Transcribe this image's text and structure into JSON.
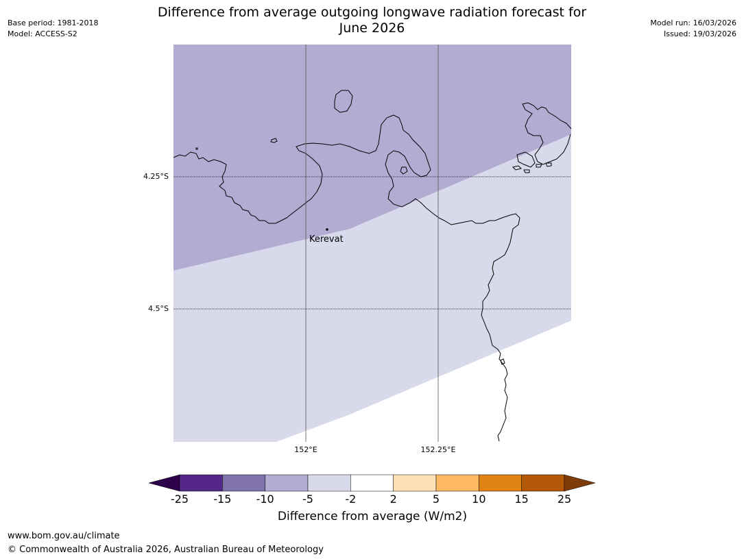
{
  "header": {
    "title_line1": "Difference from average outgoing longwave radiation forecast for",
    "title_line2": "June 2026",
    "base_period": "Base period: 1981-2018",
    "model": "Model: ACCESS-S2",
    "model_run": "Model run: 16/03/2026",
    "issued": "Issued: 19/03/2026"
  },
  "map": {
    "lat_labels": [
      "4.25°S",
      "4.5°S"
    ],
    "lon_labels": [
      "152°E",
      "152.25°E"
    ],
    "place": "Kerevat",
    "colors": {
      "anomaly_-10_-5": "#b2abd2",
      "anomaly_-5_-2": "#d8d9ea",
      "coastline": "#000000",
      "gridline": "#000000"
    }
  },
  "colorbar": {
    "ticks": [
      "-25",
      "-15",
      "-10",
      "-5",
      "-2",
      "2",
      "5",
      "10",
      "15",
      "25"
    ],
    "label": "Difference from average (W/m2)",
    "colors": [
      "#2d004b",
      "#542788",
      "#8073ac",
      "#b2abd2",
      "#d8daeb",
      "#ffffff",
      "#fee0b6",
      "#fdb863",
      "#e08214",
      "#b35806",
      "#7f3b08"
    ]
  },
  "footer": {
    "url": "www.bom.gov.au/climate",
    "copyright": "© Commonwealth of Australia 2026, Australian Bureau of Meteorology"
  }
}
